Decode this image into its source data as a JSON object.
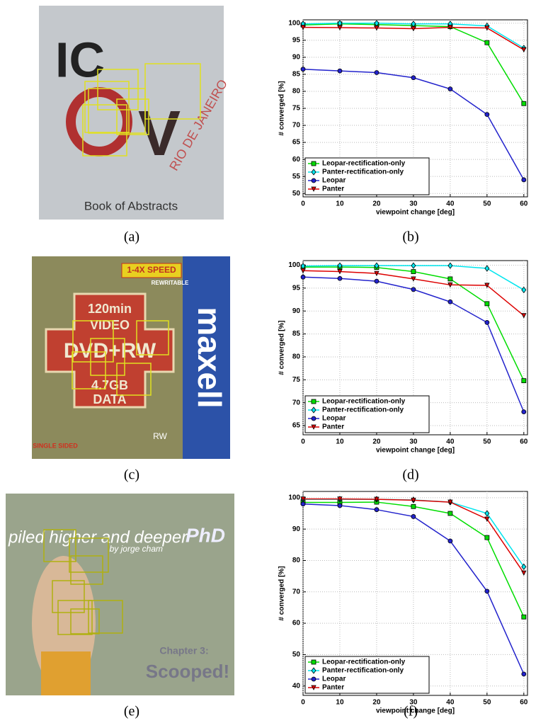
{
  "captions": [
    "(a)",
    "(b)",
    "(c)",
    "(d)",
    "(e)",
    "(f)"
  ],
  "photos": [
    {
      "texts": [
        "IC",
        "V",
        "RIO DE JANEIRO",
        "Book of Abstracts"
      ]
    },
    {
      "texts": [
        "1-4X SPEED",
        "REWRITABLE",
        "120min",
        "VIDEO",
        "DVD+RW",
        "4.7GB",
        "DATA",
        "maxell",
        "SINGLE SIDED",
        "RW"
      ]
    },
    {
      "texts": [
        "piled higher and deeper",
        "by jorge cham",
        "PhD",
        "Chapter 3:",
        "Scooped!"
      ]
    }
  ],
  "chart_data": [
    {
      "type": "line",
      "x_label": "viewpoint change [deg]",
      "y_label": "# converged [%]",
      "x": [
        0,
        10,
        20,
        30,
        40,
        50,
        60
      ],
      "xlim": [
        0,
        61
      ],
      "xticks": [
        0,
        10,
        20,
        30,
        40,
        50,
        60
      ],
      "ylim": [
        49,
        101
      ],
      "yticks": [
        50,
        55,
        60,
        65,
        70,
        75,
        80,
        85,
        90,
        95,
        100
      ],
      "grid": true,
      "legend": "lower left",
      "series": [
        {
          "name": "Leopar-rectification-only",
          "color": "#00dd00",
          "marker": "square",
          "values": [
            99.5,
            99.8,
            99.6,
            99.3,
            99,
            94.3,
            76.4
          ]
        },
        {
          "name": "Panter-rectification-only",
          "color": "#00e5ee",
          "marker": "diamond",
          "values": [
            99.8,
            100,
            100,
            99.8,
            99.8,
            99.2,
            92.7
          ]
        },
        {
          "name": "Leopar",
          "color": "#2222cc",
          "marker": "circle",
          "values": [
            86.5,
            86,
            85.5,
            84,
            80.7,
            73.2,
            54
          ]
        },
        {
          "name": "Panter",
          "color": "#dd0000",
          "marker": "triangle-down",
          "values": [
            98.8,
            98.7,
            98.6,
            98.4,
            98.8,
            98.6,
            92.2
          ]
        }
      ]
    },
    {
      "type": "line",
      "x_label": "viewpoint change [deg]",
      "y_label": "# converged [%]",
      "x": [
        0,
        10,
        20,
        30,
        40,
        50,
        60
      ],
      "xlim": [
        0,
        61
      ],
      "xticks": [
        0,
        10,
        20,
        30,
        40,
        50,
        60
      ],
      "ylim": [
        63,
        101
      ],
      "yticks": [
        65,
        70,
        75,
        80,
        85,
        90,
        95,
        100
      ],
      "grid": true,
      "legend": "lower left",
      "series": [
        {
          "name": "Leopar-rectification-only",
          "color": "#00dd00",
          "marker": "square",
          "values": [
            99.6,
            99.6,
            99.5,
            98.6,
            97,
            91.6,
            74.8
          ]
        },
        {
          "name": "Panter-rectification-only",
          "color": "#00e5ee",
          "marker": "diamond",
          "values": [
            99.8,
            99.9,
            99.9,
            99.9,
            99.9,
            99.3,
            94.6
          ]
        },
        {
          "name": "Leopar",
          "color": "#2222cc",
          "marker": "circle",
          "values": [
            97.4,
            97.1,
            96.5,
            94.7,
            92,
            87.5,
            68
          ]
        },
        {
          "name": "Panter",
          "color": "#dd0000",
          "marker": "triangle-down",
          "values": [
            98.8,
            98.6,
            98.2,
            97,
            95.7,
            95.6,
            89
          ]
        }
      ]
    },
    {
      "type": "line",
      "x_label": "viewpoint change [deg]",
      "y_label": "# converged [%]",
      "x": [
        0,
        10,
        20,
        30,
        40,
        50,
        60
      ],
      "xlim": [
        0,
        61
      ],
      "xticks": [
        0,
        10,
        20,
        30,
        40,
        50,
        60
      ],
      "ylim": [
        37,
        102
      ],
      "yticks": [
        40,
        50,
        60,
        70,
        80,
        90,
        100
      ],
      "grid": true,
      "legend": "lower left",
      "series": [
        {
          "name": "Leopar-rectification-only",
          "color": "#00dd00",
          "marker": "square",
          "values": [
            98.5,
            98.5,
            98.6,
            97.2,
            95,
            87.3,
            62
          ]
        },
        {
          "name": "Panter-rectification-only",
          "color": "#00e5ee",
          "marker": "diamond",
          "values": [
            99.5,
            99.5,
            99.5,
            99.3,
            98.6,
            95,
            78
          ]
        },
        {
          "name": "Leopar",
          "color": "#2222cc",
          "marker": "circle",
          "values": [
            98,
            97.5,
            96.2,
            94,
            86.2,
            70.2,
            43.8
          ]
        },
        {
          "name": "Panter",
          "color": "#dd0000",
          "marker": "triangle-down",
          "values": [
            99.6,
            99.6,
            99.5,
            99.2,
            98.6,
            93.2,
            76
          ]
        }
      ]
    }
  ]
}
